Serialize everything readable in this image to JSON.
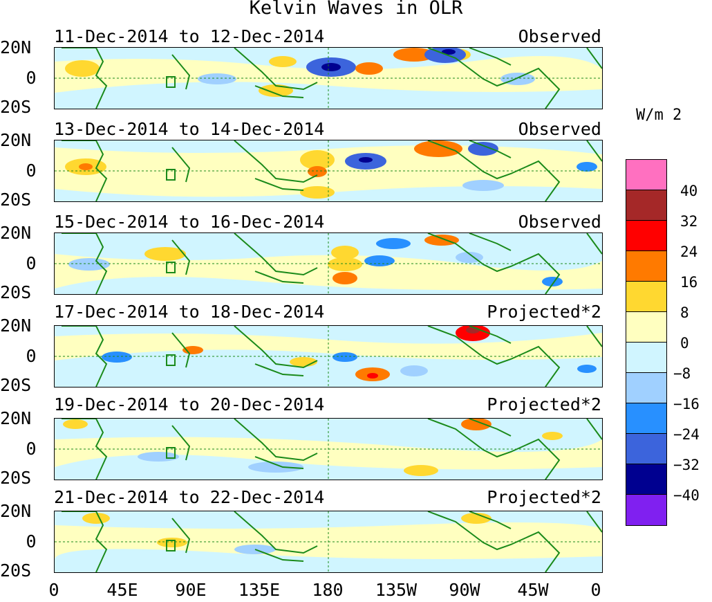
{
  "title": "Kelvin Waves in OLR",
  "units": "W/m 2",
  "latitude_labels": [
    "20N",
    "0",
    "20S"
  ],
  "longitude_labels": [
    "0",
    "45E",
    "90E",
    "135E",
    "180",
    "135W",
    "90W",
    "45W",
    "0"
  ],
  "panels": [
    {
      "dates": "11-Dec-2014 to 12-Dec-2014",
      "kind": "Observed"
    },
    {
      "dates": "13-Dec-2014 to 14-Dec-2014",
      "kind": "Observed"
    },
    {
      "dates": "15-Dec-2014 to 16-Dec-2014",
      "kind": "Observed"
    },
    {
      "dates": "17-Dec-2014 to 18-Dec-2014",
      "kind": "Projected*2"
    },
    {
      "dates": "19-Dec-2014 to 20-Dec-2014",
      "kind": "Projected*2"
    },
    {
      "dates": "21-Dec-2014 to 22-Dec-2014",
      "kind": "Projected*2"
    }
  ],
  "legend": {
    "colors": [
      "#ff70c0",
      "#a52828",
      "#ff0000",
      "#ff7a00",
      "#ffd830",
      "#ffffc0",
      "#d0f5ff",
      "#a0d0ff",
      "#2890ff",
      "#3c64dc",
      "#000090",
      "#8020f0"
    ],
    "ticks": [
      "40",
      "32",
      "24",
      "16",
      "8",
      "0",
      "−8",
      "−16",
      "−24",
      "−32",
      "−40"
    ]
  },
  "colors": {
    "coast": "#1a8a1a",
    "equator_line": "#1a8a1a",
    "background_positive": "#ffffc0",
    "background_negative": "#d0f5ff"
  }
}
